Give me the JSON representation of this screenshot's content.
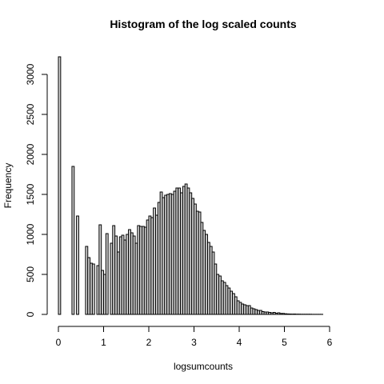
{
  "chart_data": {
    "type": "bar",
    "title": "Histogram of the log scaled counts",
    "xlabel": "logsumcounts",
    "ylabel": "Frequency",
    "xlim": [
      0,
      6.4
    ],
    "ylim": [
      0,
      3200
    ],
    "x_ticks": [
      0,
      1,
      2,
      3,
      4,
      5,
      6
    ],
    "y_ticks": [
      0,
      500,
      1000,
      1500,
      2000,
      2500,
      3000
    ],
    "bin_width": 0.05,
    "bin_start": 0.0,
    "values": [
      3220,
      0,
      0,
      0,
      0,
      0,
      1850,
      0,
      1230,
      0,
      0,
      0,
      850,
      710,
      640,
      630,
      0,
      610,
      1120,
      550,
      500,
      1010,
      0,
      890,
      1110,
      980,
      780,
      970,
      990,
      930,
      1000,
      1060,
      1020,
      980,
      890,
      1110,
      1100,
      1100,
      1090,
      1180,
      1230,
      1210,
      1330,
      1240,
      1400,
      1530,
      1460,
      1490,
      1500,
      1510,
      1500,
      1540,
      1580,
      1580,
      1520,
      1600,
      1630,
      1580,
      1520,
      1450,
      1380,
      1290,
      1280,
      1150,
      1050,
      1000,
      900,
      850,
      780,
      630,
      500,
      480,
      420,
      400,
      360,
      330,
      290,
      260,
      220,
      170,
      150,
      130,
      120,
      110,
      110,
      80,
      70,
      60,
      50,
      50,
      35,
      30,
      30,
      25,
      20,
      25,
      15,
      20,
      12,
      12,
      8,
      6,
      5,
      4,
      5,
      3,
      3,
      2,
      2,
      2,
      2,
      2,
      1,
      1,
      1,
      1,
      1
    ]
  }
}
